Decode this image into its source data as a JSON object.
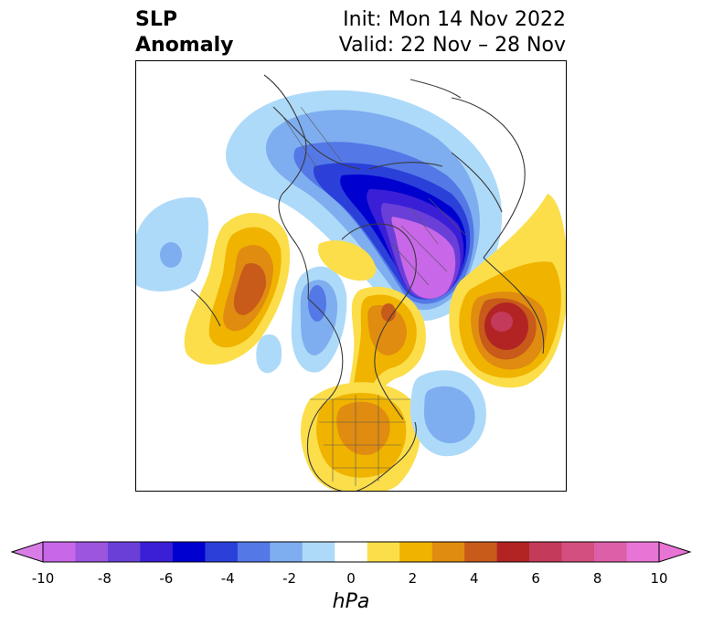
{
  "title": {
    "left_line1": "SLP",
    "left_line2": "Anomaly",
    "right_line1": "Init: Mon 14 Nov 2022",
    "right_line2": "Valid: 22 Nov – 28 Nov"
  },
  "colorbar": {
    "unit": "hPa",
    "ticks": [
      "-10",
      "-8",
      "-6",
      "-4",
      "-2",
      "0",
      "2",
      "4",
      "6",
      "8",
      "10"
    ],
    "colors": [
      "#c867e8",
      "#9b55de",
      "#6a3fd8",
      "#3a1fd6",
      "#0000cf",
      "#2a40d9",
      "#5478e6",
      "#7eaef0",
      "#aedaf9",
      "#ffffff",
      "#fbde4a",
      "#f0b400",
      "#e08c10",
      "#c85a1a",
      "#b22424",
      "#c43a5a",
      "#d24f7f",
      "#dd5fa8",
      "#e874d5"
    ],
    "extend_low": "#d97ce8",
    "extend_high": "#e874d5"
  },
  "map": {
    "projection": "polar-stereographic",
    "field": "sea-level pressure anomaly",
    "features": [
      {
        "name": "Negative anomaly over Siberia / Arctic",
        "sign": "negative",
        "peak": -10
      },
      {
        "name": "Positive anomaly over Europe",
        "sign": "positive",
        "peak": 6
      },
      {
        "name": "Positive anomaly over Gulf of Alaska",
        "sign": "positive",
        "peak": 4
      },
      {
        "name": "Positive anomaly over Greenland",
        "sign": "positive",
        "peak": 4
      },
      {
        "name": "Positive anomaly over eastern United States",
        "sign": "positive",
        "peak": 4
      },
      {
        "name": "Negative anomaly over North Atlantic",
        "sign": "negative",
        "peak": -4
      },
      {
        "name": "Negative anomaly over Hudson Bay",
        "sign": "negative",
        "peak": -4
      },
      {
        "name": "Negative anomaly over North Pacific",
        "sign": "negative",
        "peak": -3
      }
    ]
  }
}
